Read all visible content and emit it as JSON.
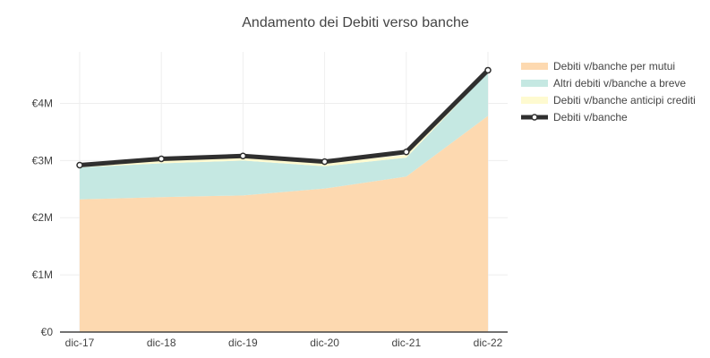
{
  "chart_data": {
    "type": "area",
    "title": "Andamento dei Debiti verso banche",
    "xlabel": "",
    "ylabel": "",
    "categories": [
      "dic-17",
      "dic-18",
      "dic-19",
      "dic-20",
      "dic-21",
      "dic-22"
    ],
    "ylim": [
      0,
      4900000
    ],
    "yticks": [
      {
        "value": 0,
        "label": "€0"
      },
      {
        "value": 1000000,
        "label": "€1M"
      },
      {
        "value": 2000000,
        "label": "€2M"
      },
      {
        "value": 3000000,
        "label": "€3M"
      },
      {
        "value": 4000000,
        "label": "€4M"
      }
    ],
    "grid": true,
    "legend_position": "top-right",
    "series": [
      {
        "name": "Debiti v/banche per mutui",
        "kind": "stacked-area",
        "color": "#fdd9b0",
        "values": [
          2320000,
          2360000,
          2390000,
          2510000,
          2720000,
          3780000
        ]
      },
      {
        "name": "Altri debiti v/banche a breve",
        "kind": "stacked-area",
        "color": "#c5e8e2",
        "values": [
          560000,
          590000,
          610000,
          390000,
          330000,
          760000
        ]
      },
      {
        "name": "Debiti v/banche anticipi crediti",
        "kind": "stacked-area",
        "color": "#fefad0",
        "values": [
          20000,
          50000,
          50000,
          50000,
          50000,
          30000
        ]
      },
      {
        "name": "Debiti v/banche",
        "kind": "line",
        "color": "#2f2f2f",
        "values": [
          2920000,
          3030000,
          3080000,
          2980000,
          3150000,
          4580000
        ]
      }
    ]
  }
}
